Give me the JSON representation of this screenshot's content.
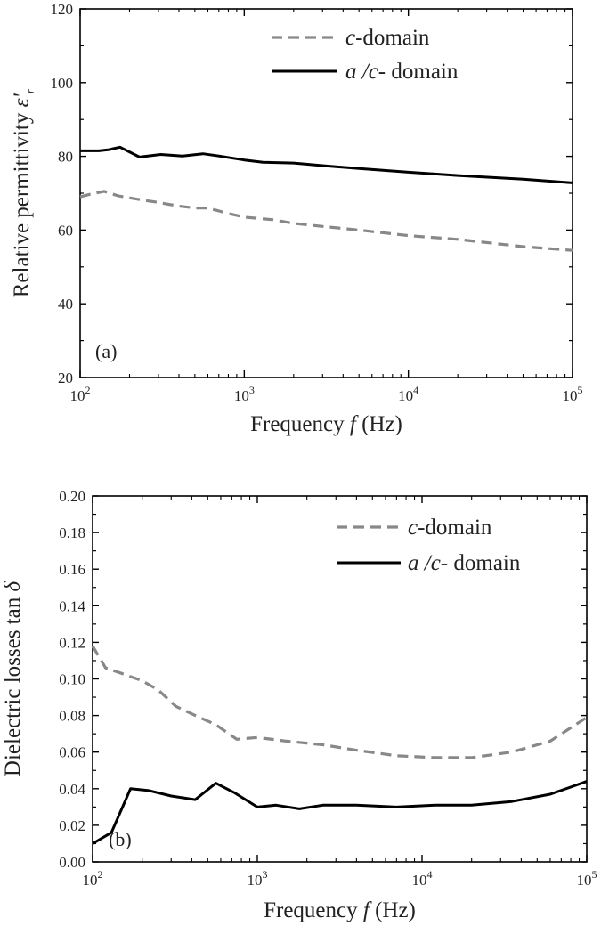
{
  "chart_data": [
    {
      "type": "line",
      "panel_label": "(a)",
      "xlabel_prefix": "Frequency ",
      "xlabel_var": "f",
      "xlabel_suffix": " (Hz)",
      "ylabel": "Relative permittivity ε'r",
      "ylabel_text": "Relative permittivity ",
      "ylabel_symbol": "ε'",
      "ylabel_sub": "r",
      "x_scale": "log",
      "xlim": [
        100,
        100000
      ],
      "ylim": [
        20,
        120
      ],
      "x_ticks": [
        {
          "base": "10",
          "exp": "2"
        },
        {
          "base": "10",
          "exp": "3"
        },
        {
          "base": "10",
          "exp": "4"
        },
        {
          "base": "10",
          "exp": "5"
        }
      ],
      "y_ticks": [
        "20",
        "40",
        "60",
        "80",
        "100",
        "120"
      ],
      "legend_position": "top-right",
      "series": [
        {
          "name": "c-domain",
          "name_italic": "c",
          "name_rest": "-domain",
          "style": "dashed",
          "color": "#888888",
          "x": [
            100,
            115,
            140,
            170,
            220,
            300,
            400,
            500,
            600,
            800,
            1000,
            1500,
            2000,
            3000,
            5000,
            10000,
            20000,
            50000,
            100000
          ],
          "y": [
            69,
            69.7,
            70.5,
            69.3,
            68.4,
            67.5,
            66.5,
            66,
            66,
            64.5,
            63.5,
            62.8,
            61.8,
            61,
            60,
            58.5,
            57.5,
            55.5,
            54.5
          ]
        },
        {
          "name": "a /c- domain",
          "name_italic": "a /c",
          "name_rest": "- domain",
          "style": "solid",
          "color": "#000000",
          "x": [
            100,
            130,
            150,
            175,
            230,
            310,
            420,
            560,
            700,
            1000,
            1300,
            2000,
            3000,
            5000,
            10000,
            20000,
            50000,
            100000
          ],
          "y": [
            81.5,
            81.5,
            81.8,
            82.5,
            79.8,
            80.5,
            80.1,
            80.7,
            80.1,
            79.0,
            78.4,
            78.2,
            77.5,
            76.7,
            75.7,
            74.8,
            73.8,
            72.8
          ]
        }
      ]
    },
    {
      "type": "line",
      "panel_label": "(b)",
      "xlabel_prefix": "Frequency ",
      "xlabel_var": "f",
      "xlabel_suffix": " (Hz)",
      "ylabel": "Dielectric losses tan δ",
      "ylabel_text": "Dielectric losses tan ",
      "ylabel_symbol": "δ",
      "ylabel_sub": "",
      "x_scale": "log",
      "xlim": [
        100,
        100000
      ],
      "ylim": [
        0,
        0.2
      ],
      "x_ticks": [
        {
          "base": "10",
          "exp": "2"
        },
        {
          "base": "10",
          "exp": "3"
        },
        {
          "base": "10",
          "exp": "4"
        },
        {
          "base": "10",
          "exp": "5"
        }
      ],
      "y_ticks": [
        "0.00",
        "0.02",
        "0.04",
        "0.06",
        "0.08",
        "0.10",
        "0.12",
        "0.14",
        "0.16",
        "0.18",
        "0.20"
      ],
      "legend_position": "top-right",
      "series": [
        {
          "name": "c-domain",
          "name_italic": "c",
          "name_rest": "-domain",
          "style": "dashed",
          "color": "#888888",
          "x": [
            100,
            120,
            150,
            200,
            250,
            320,
            420,
            560,
            750,
            1000,
            1500,
            2500,
            4000,
            7000,
            12000,
            20000,
            35000,
            60000,
            100000
          ],
          "y": [
            0.118,
            0.106,
            0.103,
            0.099,
            0.094,
            0.085,
            0.08,
            0.075,
            0.067,
            0.068,
            0.066,
            0.064,
            0.061,
            0.058,
            0.057,
            0.057,
            0.06,
            0.066,
            0.079
          ]
        },
        {
          "name": "a /c- domain",
          "name_italic": "a /c",
          "name_rest": "- domain",
          "style": "solid",
          "color": "#000000",
          "x": [
            100,
            130,
            170,
            220,
            300,
            420,
            560,
            720,
            1000,
            1300,
            1800,
            2500,
            4000,
            7000,
            12000,
            20000,
            35000,
            60000,
            100000
          ],
          "y": [
            0.01,
            0.016,
            0.04,
            0.039,
            0.036,
            0.034,
            0.043,
            0.038,
            0.03,
            0.031,
            0.029,
            0.031,
            0.031,
            0.03,
            0.031,
            0.031,
            0.033,
            0.037,
            0.044
          ]
        }
      ]
    }
  ]
}
